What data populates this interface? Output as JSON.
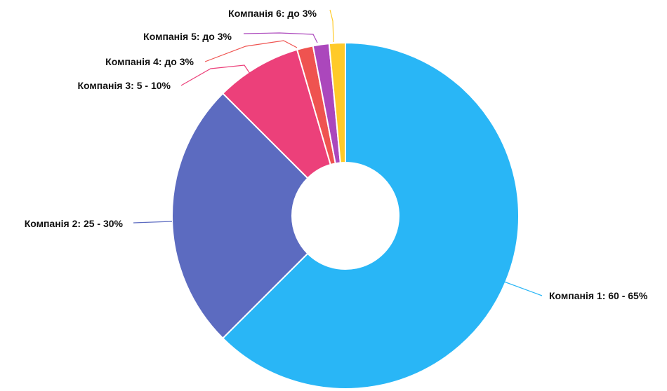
{
  "chart_data": {
    "type": "pie",
    "donut": true,
    "title": "",
    "legend": "none",
    "slices": [
      {
        "label": "Компанія 1: 60 - 65%",
        "value": 62.5,
        "color": "#29b6f6"
      },
      {
        "label": "Компанія 2: 25 - 30%",
        "value": 25.0,
        "color": "#5c6bc0"
      },
      {
        "label": "Компанія 3: 5 - 10%",
        "value": 8.0,
        "color": "#ec407a"
      },
      {
        "label": "Компанія 4: до 3%",
        "value": 1.5,
        "color": "#ef5350"
      },
      {
        "label": "Компанія 5: до 3%",
        "value": 1.5,
        "color": "#ab47bc"
      },
      {
        "label": "Компанія 6: до 3%",
        "value": 1.5,
        "color": "#ffca28"
      }
    ]
  }
}
